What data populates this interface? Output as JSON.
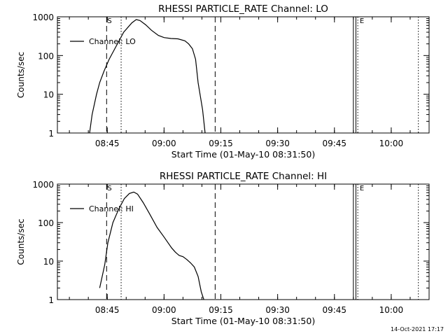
{
  "chart_data": [
    {
      "type": "line",
      "title": "RHESSI PARTICLE_RATE Channel: LO",
      "xlabel": "Start Time (01-May-10 08:31:50)",
      "ylabel": "Counts/sec",
      "y_scale": "log",
      "xlim": [
        "08:31:50",
        "10:10:00"
      ],
      "ylim": [
        1,
        1000
      ],
      "x_ticks": [
        "08:45",
        "09:00",
        "09:15",
        "09:30",
        "09:45",
        "10:00"
      ],
      "y_ticks": [
        "1",
        "10",
        "100",
        "1000"
      ],
      "legend": {
        "label": "Channel: LO",
        "position": "top-left"
      },
      "markers": [
        {
          "time": "08:44:50",
          "style": "dashed",
          "label": "S"
        },
        {
          "time": "08:48:40",
          "style": "dotted",
          "label": ""
        },
        {
          "time": "09:13:30",
          "style": "dashed",
          "label": ""
        },
        {
          "time": "09:50:00",
          "style": "solid",
          "label": ""
        },
        {
          "time": "09:50:40",
          "style": "solid",
          "label": ""
        },
        {
          "time": "09:51:10",
          "style": "dotted",
          "label": ""
        },
        {
          "time": "09:51:30",
          "style": "none",
          "label": "E"
        },
        {
          "time": "10:07:10",
          "style": "dotted",
          "label": ""
        }
      ],
      "series": [
        {
          "name": "Channel: LO",
          "x": [
            "08:40:20",
            "08:41:00",
            "08:42:10",
            "08:43:00",
            "08:44:10",
            "08:45:30",
            "08:47:00",
            "08:49:20",
            "08:51:30",
            "08:52:40",
            "08:53:40",
            "08:55:10",
            "08:56:40",
            "08:58:30",
            "09:00:00",
            "09:01:50",
            "09:03:40",
            "09:05:30",
            "09:06:30",
            "09:07:30",
            "09:08:20",
            "09:09:00",
            "09:10:10",
            "09:10:50"
          ],
          "values": [
            1,
            3,
            10,
            20,
            40,
            80,
            150,
            400,
            700,
            850,
            800,
            620,
            450,
            330,
            290,
            275,
            270,
            240,
            200,
            150,
            80,
            20,
            4,
            1
          ]
        }
      ]
    },
    {
      "type": "line",
      "title": "RHESSI PARTICLE_RATE Channel: HI",
      "xlabel": "Start Time (01-May-10 08:31:50)",
      "ylabel": "Counts/sec",
      "y_scale": "log",
      "xlim": [
        "08:31:50",
        "10:10:00"
      ],
      "ylim": [
        1,
        1000
      ],
      "x_ticks": [
        "08:45",
        "09:00",
        "09:15",
        "09:30",
        "09:45",
        "10:00"
      ],
      "y_ticks": [
        "1",
        "10",
        "100",
        "1000"
      ],
      "legend": {
        "label": "Channel: HI",
        "position": "top-left"
      },
      "markers": [
        {
          "time": "08:44:50",
          "style": "dashed",
          "label": "S"
        },
        {
          "time": "08:48:40",
          "style": "dotted",
          "label": ""
        },
        {
          "time": "09:13:30",
          "style": "dashed",
          "label": ""
        },
        {
          "time": "09:50:00",
          "style": "solid",
          "label": ""
        },
        {
          "time": "09:50:40",
          "style": "solid",
          "label": ""
        },
        {
          "time": "09:51:10",
          "style": "dotted",
          "label": ""
        },
        {
          "time": "09:51:30",
          "style": "none",
          "label": "E"
        },
        {
          "time": "10:07:10",
          "style": "dotted",
          "label": ""
        }
      ],
      "series": [
        {
          "name": "Channel: HI",
          "x": [
            "08:43:00",
            "08:44:20",
            "08:45:10",
            "08:46:30",
            "08:48:00",
            "08:49:30",
            "08:50:50",
            "08:52:00",
            "08:53:00",
            "08:54:30",
            "08:56:10",
            "08:58:10",
            "09:00:00",
            "09:02:00",
            "09:03:00",
            "09:04:00",
            "09:05:00",
            "09:06:00",
            "09:07:00",
            "09:08:00",
            "09:09:00",
            "09:09:50",
            "09:10:30"
          ],
          "values": [
            2,
            8,
            30,
            100,
            220,
            420,
            570,
            620,
            550,
            330,
            170,
            75,
            42,
            22,
            17,
            14,
            13,
            11,
            9,
            7,
            4,
            1.6,
            1
          ]
        }
      ]
    }
  ],
  "footer": {
    "timestamp": "14-Oct-2021 17:17"
  }
}
